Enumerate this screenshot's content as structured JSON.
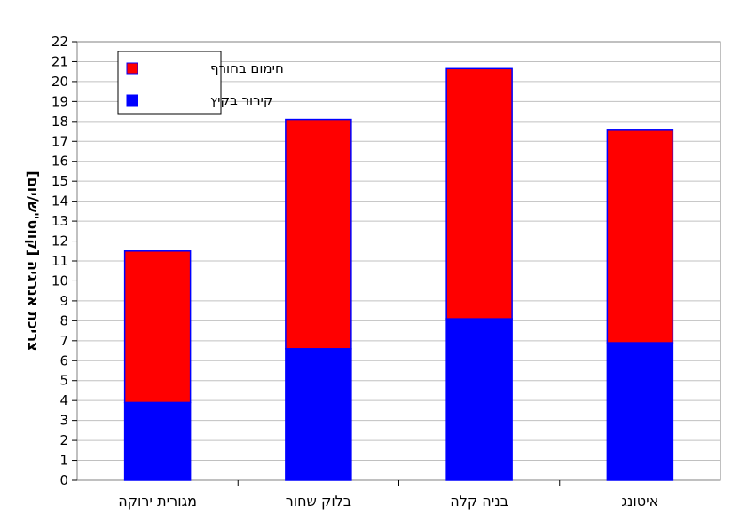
{
  "chart_data": {
    "type": "bar",
    "stacked": true,
    "categories": [
      "מגורית ירוקה",
      "בלוק שחור",
      "בניה קלה",
      "איטונג"
    ],
    "series": [
      {
        "name": "קירור בקיץ",
        "values": [
          3.9,
          6.6,
          8.1,
          6.9
        ],
        "color": "#0000ff"
      },
      {
        "name": "חימום בחורף",
        "values": [
          7.6,
          11.5,
          12.55,
          10.7
        ],
        "color": "#ff0000"
      }
    ],
    "ylabel": "צריכת אנרגיה [קווט\"ש/יום]",
    "xlabel": "",
    "title": "",
    "ylim": [
      0,
      22
    ],
    "yticks": [
      0,
      1,
      2,
      3,
      4,
      5,
      6,
      7,
      8,
      9,
      10,
      11,
      12,
      13,
      14,
      15,
      16,
      17,
      18,
      19,
      20,
      21,
      22
    ],
    "grid": true,
    "legend_position": "top-left",
    "plot_background": "#ffffff",
    "gridline_color": "#c0c0c0"
  }
}
